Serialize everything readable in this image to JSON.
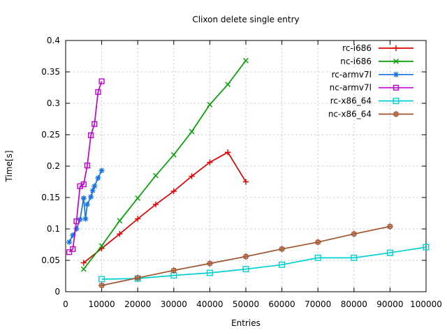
{
  "window": {
    "background": "#ffffff"
  },
  "chart_data": {
    "type": "line",
    "title": "Clixon delete single entry",
    "xlabel": "Entries",
    "ylabel": "Time[s]",
    "xlim": [
      0,
      100000
    ],
    "ylim": [
      0,
      0.4
    ],
    "grid": true,
    "legend_position": "top-right-inside",
    "x_ticks": [
      0,
      10000,
      20000,
      30000,
      40000,
      50000,
      60000,
      70000,
      80000,
      90000,
      100000
    ],
    "x_tick_labels": [
      "0",
      "10000",
      "20000",
      "30000",
      "40000",
      "50000",
      "60000",
      "70000",
      "80000",
      "90000",
      "100000"
    ],
    "y_ticks": [
      0,
      0.05,
      0.1,
      0.15,
      0.2,
      0.25,
      0.3,
      0.35,
      0.4
    ],
    "y_tick_labels": [
      "0",
      "0.05",
      "0.1",
      "0.15",
      "0.2",
      "0.25",
      "0.3",
      "0.35",
      "0.4"
    ],
    "series": [
      {
        "name": "rc-i686",
        "color": "#e00000",
        "marker": "plus",
        "points": [
          [
            5000,
            0.046
          ],
          [
            10000,
            0.069
          ],
          [
            15000,
            0.092
          ],
          [
            20000,
            0.116
          ],
          [
            25000,
            0.139
          ],
          [
            30000,
            0.16
          ],
          [
            35000,
            0.184
          ],
          [
            40000,
            0.206
          ],
          [
            45000,
            0.222
          ],
          [
            50000,
            0.175
          ]
        ]
      },
      {
        "name": "nc-i686",
        "color": "#00a000",
        "marker": "cross",
        "points": [
          [
            5000,
            0.036
          ],
          [
            10000,
            0.073
          ],
          [
            15000,
            0.113
          ],
          [
            20000,
            0.149
          ],
          [
            25000,
            0.185
          ],
          [
            30000,
            0.218
          ],
          [
            35000,
            0.255
          ],
          [
            40000,
            0.298
          ],
          [
            45000,
            0.33
          ],
          [
            50000,
            0.368
          ]
        ]
      },
      {
        "name": "rc-armv7l",
        "color": "#1874e0",
        "marker": "asterisk",
        "points": [
          [
            1000,
            0.079
          ],
          [
            2000,
            0.09
          ],
          [
            3000,
            0.1
          ],
          [
            4000,
            0.115
          ],
          [
            5000,
            0.149
          ],
          [
            5500,
            0.116
          ],
          [
            6000,
            0.139
          ],
          [
            7000,
            0.151
          ],
          [
            7500,
            0.161
          ],
          [
            8000,
            0.168
          ],
          [
            9000,
            0.181
          ],
          [
            10000,
            0.193
          ]
        ]
      },
      {
        "name": "nc-armv7l",
        "color": "#c000d0",
        "marker": "open-square",
        "points": [
          [
            1000,
            0.063
          ],
          [
            2000,
            0.068
          ],
          [
            3000,
            0.112
          ],
          [
            4000,
            0.168
          ],
          [
            5000,
            0.171
          ],
          [
            6000,
            0.201
          ],
          [
            7000,
            0.249
          ],
          [
            8000,
            0.267
          ],
          [
            9000,
            0.318
          ],
          [
            10000,
            0.335
          ]
        ]
      },
      {
        "name": "rc-x86_64",
        "color": "#00d0d0",
        "marker": "filled-square",
        "points": [
          [
            10000,
            0.02
          ],
          [
            20000,
            0.021
          ],
          [
            30000,
            0.026
          ],
          [
            40000,
            0.03
          ],
          [
            50000,
            0.036
          ],
          [
            60000,
            0.043
          ],
          [
            70000,
            0.054
          ],
          [
            80000,
            0.054
          ],
          [
            90000,
            0.062
          ],
          [
            100000,
            0.071
          ]
        ]
      },
      {
        "name": "nc-x86_64",
        "color": "#a0522d",
        "marker": "square-plus",
        "points": [
          [
            10000,
            0.01
          ],
          [
            20000,
            0.022
          ],
          [
            30000,
            0.034
          ],
          [
            40000,
            0.045
          ],
          [
            50000,
            0.056
          ],
          [
            60000,
            0.068
          ],
          [
            70000,
            0.079
          ],
          [
            80000,
            0.092
          ],
          [
            90000,
            0.104
          ]
        ]
      }
    ]
  }
}
